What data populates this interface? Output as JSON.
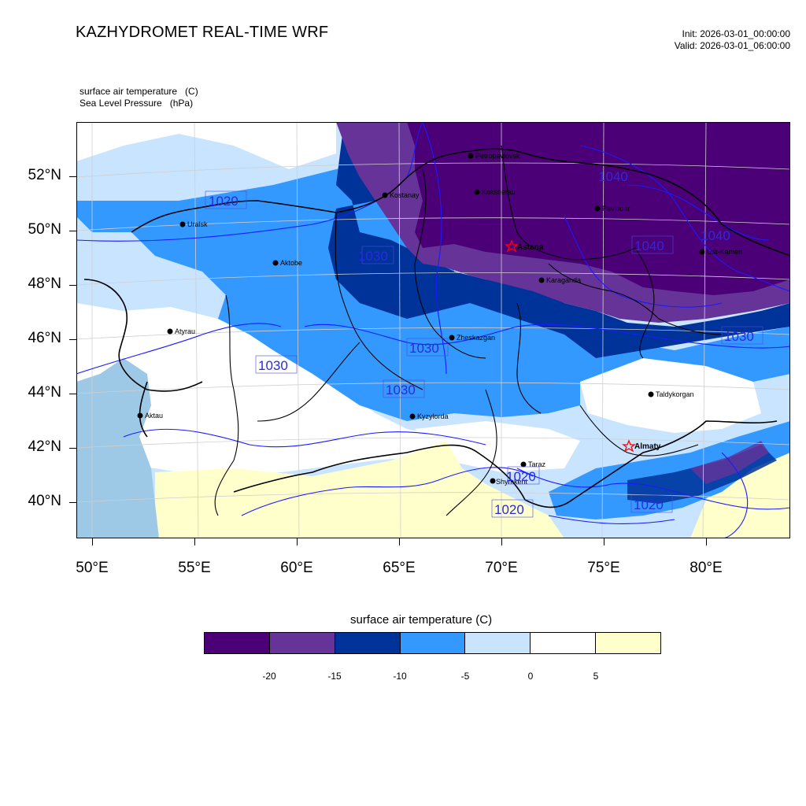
{
  "header": {
    "title": "KAZHYDROMET REAL-TIME WRF",
    "init": "Init: 2026-03-01_00:00:00",
    "valid": "Valid: 2026-03-01_06:00:00"
  },
  "fields": {
    "field1": "surface air temperature   (C)",
    "field2": "Sea Level Pressure   (hPa)"
  },
  "axes": {
    "lat_labels": [
      "52°N",
      "50°N",
      "48°N",
      "46°N",
      "44°N",
      "42°N",
      "40°N"
    ],
    "lon_labels": [
      "50°E",
      "55°E",
      "60°E",
      "65°E",
      "70°E",
      "75°E",
      "80°E"
    ]
  },
  "legend": {
    "title": "surface air temperature (C)",
    "tick_labels": [
      "-20",
      "-15",
      "-10",
      "-5",
      "0",
      "5"
    ],
    "colors": [
      "#4b0077",
      "#663399",
      "#003399",
      "#3399ff",
      "#c8e4ff",
      "#ffffff",
      "#ffffcc"
    ]
  },
  "cities": [
    {
      "name": "Petropavlovsk",
      "major": false
    },
    {
      "name": "Kostanay",
      "major": false
    },
    {
      "name": "Kokshetau",
      "major": false
    },
    {
      "name": "Pavlodar",
      "major": false
    },
    {
      "name": "Uralsk",
      "major": false
    },
    {
      "name": "Astana",
      "major": true
    },
    {
      "name": "Aktobe",
      "major": false
    },
    {
      "name": "Ust-Kamen",
      "major": false
    },
    {
      "name": "Karaganda",
      "major": false
    },
    {
      "name": "Atyrau",
      "major": false
    },
    {
      "name": "Zheskazgan",
      "major": false
    },
    {
      "name": "Taldykorgan",
      "major": false
    },
    {
      "name": "Aktau",
      "major": false
    },
    {
      "name": "Kyzylorda",
      "major": false
    },
    {
      "name": "Almaty",
      "major": true
    },
    {
      "name": "Taraz",
      "major": false
    },
    {
      "name": "Shymkent",
      "major": false
    }
  ],
  "isobars": [
    "1020",
    "1030",
    "1030",
    "1030",
    "1030",
    "1030",
    "1040",
    "1040",
    "1040",
    "1030",
    "1020",
    "1020",
    "1020"
  ]
}
